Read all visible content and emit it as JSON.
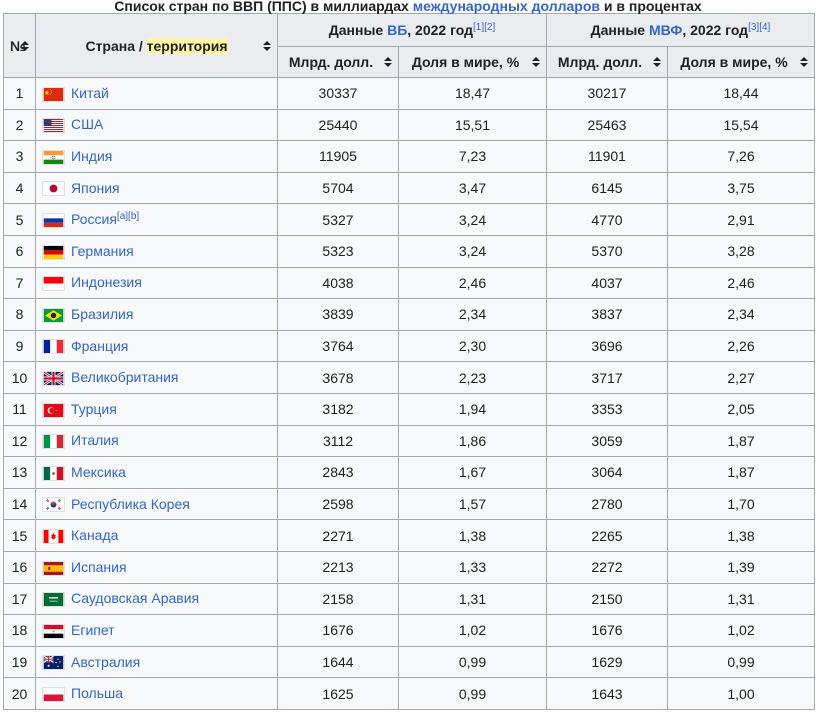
{
  "caption": {
    "prefix": "Список стран по ВВП (ППС) в миллиардах ",
    "link": "международных долларов",
    "suffix": " и в процентах"
  },
  "header": {
    "rank": "№",
    "country_prefix": "Страна / ",
    "country_highlight": "территория",
    "wb_prefix": "Данные ",
    "wb_link": "ВБ",
    "wb_suffix": ", 2022 год",
    "wb_refs": "[1][2]",
    "imf_prefix": "Данные ",
    "imf_link": "МВФ",
    "imf_suffix": ", 2022 год",
    "imf_refs": "[3][4]",
    "col_bln": "Млрд. долл.",
    "col_share": "Доля в мире, %"
  },
  "rows": [
    {
      "rank": "1",
      "country": "Китай",
      "flag": "china-flag",
      "refs": "",
      "wb_bln": "30337",
      "wb_share": "18,47",
      "imf_bln": "30217",
      "imf_share": "18,44"
    },
    {
      "rank": "2",
      "country": "США",
      "flag": "usa-flag",
      "refs": "",
      "wb_bln": "25440",
      "wb_share": "15,51",
      "imf_bln": "25463",
      "imf_share": "15,54"
    },
    {
      "rank": "3",
      "country": "Индия",
      "flag": "india-flag",
      "refs": "",
      "wb_bln": "11905",
      "wb_share": "7,23",
      "imf_bln": "11901",
      "imf_share": "7,26"
    },
    {
      "rank": "4",
      "country": "Япония",
      "flag": "japan-flag",
      "refs": "",
      "wb_bln": "5704",
      "wb_share": "3,47",
      "imf_bln": "6145",
      "imf_share": "3,75"
    },
    {
      "rank": "5",
      "country": "Россия",
      "flag": "russia-flag",
      "refs": "[a][b]",
      "wb_bln": "5327",
      "wb_share": "3,24",
      "imf_bln": "4770",
      "imf_share": "2,91"
    },
    {
      "rank": "6",
      "country": "Германия",
      "flag": "germany-flag",
      "refs": "",
      "wb_bln": "5323",
      "wb_share": "3,24",
      "imf_bln": "5370",
      "imf_share": "3,28"
    },
    {
      "rank": "7",
      "country": "Индонезия",
      "flag": "indonesia-flag",
      "refs": "",
      "wb_bln": "4038",
      "wb_share": "2,46",
      "imf_bln": "4037",
      "imf_share": "2,46"
    },
    {
      "rank": "8",
      "country": "Бразилия",
      "flag": "brazil-flag",
      "refs": "",
      "wb_bln": "3839",
      "wb_share": "2,34",
      "imf_bln": "3837",
      "imf_share": "2,34"
    },
    {
      "rank": "9",
      "country": "Франция",
      "flag": "france-flag",
      "refs": "",
      "wb_bln": "3764",
      "wb_share": "2,30",
      "imf_bln": "3696",
      "imf_share": "2,26"
    },
    {
      "rank": "10",
      "country": "Великобритания",
      "flag": "uk-flag",
      "refs": "",
      "wb_bln": "3678",
      "wb_share": "2,23",
      "imf_bln": "3717",
      "imf_share": "2,27"
    },
    {
      "rank": "11",
      "country": "Турция",
      "flag": "turkey-flag",
      "refs": "",
      "wb_bln": "3182",
      "wb_share": "1,94",
      "imf_bln": "3353",
      "imf_share": "2,05"
    },
    {
      "rank": "12",
      "country": "Италия",
      "flag": "italy-flag",
      "refs": "",
      "wb_bln": "3112",
      "wb_share": "1,86",
      "imf_bln": "3059",
      "imf_share": "1,87"
    },
    {
      "rank": "13",
      "country": "Мексика",
      "flag": "mexico-flag",
      "refs": "",
      "wb_bln": "2843",
      "wb_share": "1,67",
      "imf_bln": "3064",
      "imf_share": "1,87"
    },
    {
      "rank": "14",
      "country": "Республика Корея",
      "flag": "korea-flag",
      "refs": "",
      "wb_bln": "2598",
      "wb_share": "1,57",
      "imf_bln": "2780",
      "imf_share": "1,70"
    },
    {
      "rank": "15",
      "country": "Канада",
      "flag": "canada-flag",
      "refs": "",
      "wb_bln": "2271",
      "wb_share": "1,38",
      "imf_bln": "2265",
      "imf_share": "1,38"
    },
    {
      "rank": "16",
      "country": "Испания",
      "flag": "spain-flag",
      "refs": "",
      "wb_bln": "2213",
      "wb_share": "1,33",
      "imf_bln": "2272",
      "imf_share": "1,39"
    },
    {
      "rank": "17",
      "country": "Саудовская Аравия",
      "flag": "saudi-arabia-flag",
      "refs": "",
      "wb_bln": "2158",
      "wb_share": "1,31",
      "imf_bln": "2150",
      "imf_share": "1,31"
    },
    {
      "rank": "18",
      "country": "Египет",
      "flag": "egypt-flag",
      "refs": "",
      "wb_bln": "1676",
      "wb_share": "1,02",
      "imf_bln": "1676",
      "imf_share": "1,02"
    },
    {
      "rank": "19",
      "country": "Австралия",
      "flag": "australia-flag",
      "refs": "",
      "wb_bln": "1644",
      "wb_share": "0,99",
      "imf_bln": "1629",
      "imf_share": "0,99"
    },
    {
      "rank": "20",
      "country": "Польша",
      "flag": "poland-flag",
      "refs": "",
      "wb_bln": "1625",
      "wb_share": "0,99",
      "imf_bln": "1643",
      "imf_share": "1,00"
    }
  ]
}
